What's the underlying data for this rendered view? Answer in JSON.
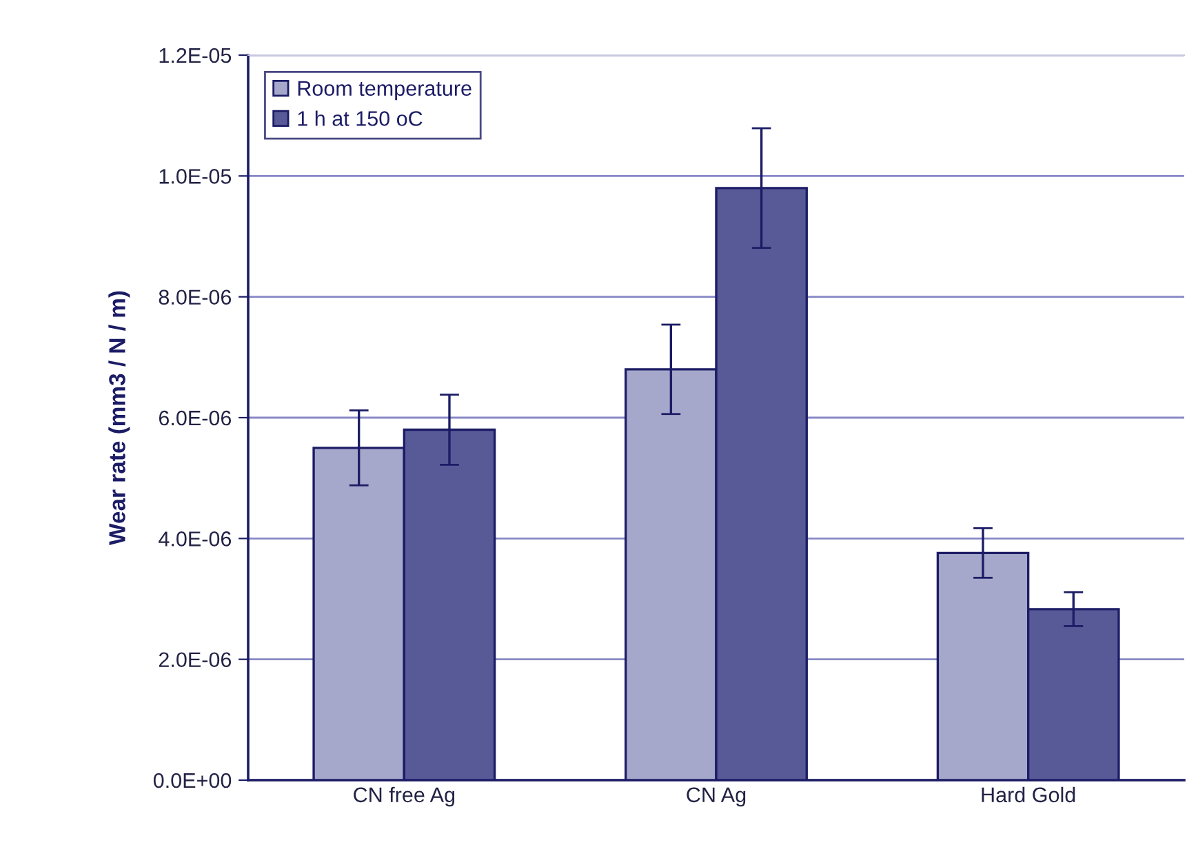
{
  "chart_data": {
    "type": "bar",
    "ylabel": "Wear rate (mm3 / N / m)",
    "categories": [
      "CN free Ag",
      "CN Ag",
      "Hard Gold"
    ],
    "series": [
      {
        "name": "Room temperature",
        "color": "#a6a8cb",
        "values": [
          5.5e-06,
          6.8e-06,
          3.76e-06
        ],
        "errors": [
          6.2e-07,
          7.4e-07,
          4.1e-07
        ]
      },
      {
        "name": "1 h at 150 oC",
        "color": "#585a98",
        "values": [
          5.8e-06,
          9.8e-06,
          2.83e-06
        ],
        "errors": [
          5.8e-07,
          9.9e-07,
          2.8e-07
        ]
      }
    ],
    "ylim": [
      0,
      1.2e-05
    ],
    "yticks": [
      {
        "value": 0,
        "label": "0.0E+00"
      },
      {
        "value": 2e-06,
        "label": "2.0E-06"
      },
      {
        "value": 4e-06,
        "label": "4.0E-06"
      },
      {
        "value": 6e-06,
        "label": "6.0E-06"
      },
      {
        "value": 8e-06,
        "label": "8.0E-06"
      },
      {
        "value": 1e-05,
        "label": "1.0E-05"
      },
      {
        "value": 1.2e-05,
        "label": "1.2E-05"
      }
    ],
    "grid": "y",
    "legend": "top left"
  }
}
